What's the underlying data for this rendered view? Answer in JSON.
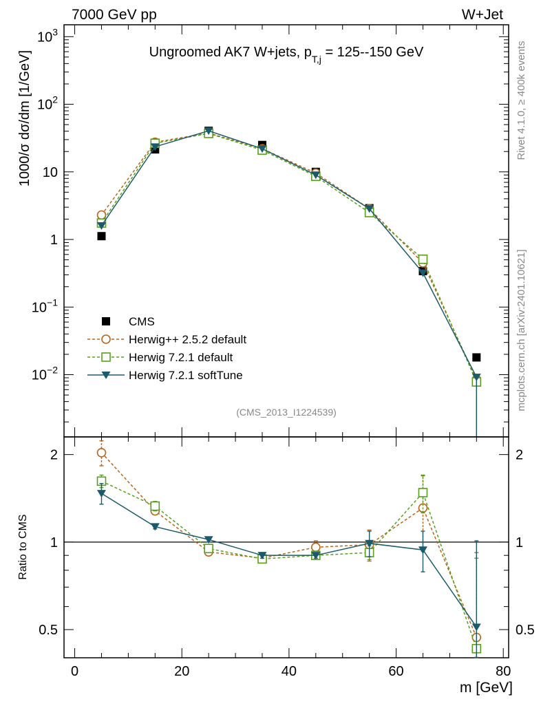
{
  "header": {
    "left": "7000 GeV pp",
    "right": "W+Jet"
  },
  "side": {
    "rivet": "Rivet 4.1.0, ≥ 400k events",
    "mcplots": "mcplots.cern.ch [arXiv:2401.10621]"
  },
  "analysis_id": "(CMS_2013_I1224539)",
  "chart_data": [
    {
      "type": "line",
      "panel": "main",
      "title": "Ungroomed AK7 W+jets, p_T,j = 125--150 GeV",
      "title_parts": {
        "pre": "Ungroomed AK7 W+jets, p",
        "sub": "T,j",
        "post": " = 125--150 GeV"
      },
      "ylabel": "1000/σ  dσ/dm [1/GeV]",
      "yscale": "log",
      "ylim": [
        0.0012,
        1500
      ],
      "xlim": [
        -2,
        81
      ],
      "x": [
        5,
        15,
        25,
        35,
        45,
        55,
        65,
        75
      ],
      "yticks": [
        {
          "v": 1000,
          "base": "10",
          "exp": "3"
        },
        {
          "v": 100,
          "base": "10",
          "exp": "2"
        },
        {
          "v": 10,
          "base": "10",
          "exp": ""
        },
        {
          "v": 1,
          "base": "1",
          "exp": ""
        },
        {
          "v": 0.1,
          "base": "10",
          "exp": "−1"
        },
        {
          "v": 0.01,
          "base": "10",
          "exp": "−2"
        }
      ],
      "series": [
        {
          "name": "CMS",
          "color": "#000000",
          "marker": "square-filled",
          "dash": "none",
          "values": [
            1.12,
            21.5,
            40.5,
            25,
            10,
            2.9,
            0.34,
            0.018
          ]
        },
        {
          "name": "Herwig++ 2.5.2 default",
          "color": "#b8631b",
          "marker": "circle-open",
          "dash": "4,3",
          "values": [
            2.3,
            27.5,
            37.5,
            22,
            9.6,
            2.85,
            0.45,
            0.0085
          ]
        },
        {
          "name": "Herwig 7.2.1 default",
          "color": "#55a018",
          "marker": "square-open",
          "dash": "4,3",
          "values": [
            1.75,
            26.5,
            37,
            21,
            8.6,
            2.5,
            0.51,
            0.0078
          ]
        },
        {
          "name": "Herwig 7.2.1 softTune",
          "color": "#1b5a6a",
          "marker": "triangle-down-filled",
          "dash": "none",
          "values": [
            1.6,
            23.5,
            40.5,
            22,
            9,
            2.85,
            0.32,
            0.0092
          ]
        }
      ],
      "legend_position": "bottom-left"
    },
    {
      "type": "line",
      "panel": "ratio",
      "ylabel": "Ratio to CMS",
      "xlabel": "m [GeV]",
      "yscale": "log",
      "ylim": [
        0.4,
        2.3
      ],
      "xlim": [
        -2,
        81
      ],
      "x": [
        5,
        15,
        25,
        35,
        45,
        55,
        65,
        75
      ],
      "xticks": [
        "0",
        "20",
        "40",
        "60",
        "80"
      ],
      "yticks": [
        {
          "v": 0.5,
          "label": "0.5"
        },
        {
          "v": 1,
          "label": "1"
        },
        {
          "v": 2,
          "label": "2"
        }
      ],
      "reference": 1,
      "series": [
        {
          "name": "Herwig++ 2.5.2 default",
          "color": "#b8631b",
          "marker": "circle-open",
          "dash": "4,3",
          "values": [
            2.03,
            1.28,
            0.925,
            0.88,
            0.96,
            0.98,
            1.31,
            0.47
          ],
          "err": [
            0.2,
            0.03,
            0.02,
            0.02,
            0.05,
            0.12,
            0.38,
            0.45
          ]
        },
        {
          "name": "Herwig 7.2.1 default",
          "color": "#55a018",
          "marker": "square-open",
          "dash": "4,3",
          "values": [
            1.62,
            1.33,
            0.95,
            0.875,
            0.9,
            0.92,
            1.48,
            0.43
          ],
          "err": [
            0.08,
            0.05,
            0.02,
            0.02,
            0.03,
            0.05,
            0.22,
            0.45
          ]
        },
        {
          "name": "Herwig 7.2.1 softTune",
          "color": "#1b5a6a",
          "marker": "triangle-down-filled",
          "dash": "none",
          "values": [
            1.47,
            1.13,
            1.02,
            0.9,
            0.9,
            0.99,
            0.94,
            0.51
          ],
          "err": [
            0.12,
            0.02,
            0.02,
            0.02,
            0.02,
            0.1,
            0.15,
            0.5
          ]
        }
      ]
    }
  ]
}
